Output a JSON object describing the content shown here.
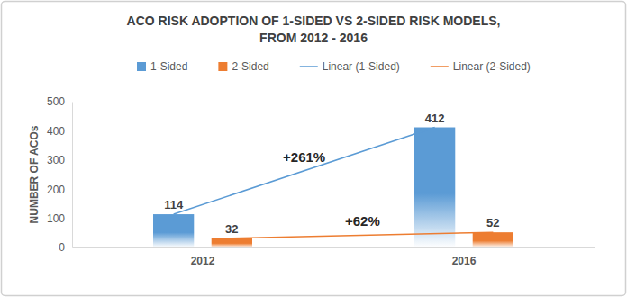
{
  "chart_data": {
    "type": "bar",
    "title": [
      "ACO RISK ADOPTION OF 1-SIDED VS 2-SIDED RISK MODELS,",
      "FROM 2012 - 2016"
    ],
    "y_label": "NUMBER OF ACOs",
    "categories": [
      "2012",
      "2016"
    ],
    "series": [
      {
        "name": "1-Sided",
        "type": "bar",
        "color": "#5b9bd5",
        "values": [
          114,
          412
        ]
      },
      {
        "name": "2-Sided",
        "type": "bar",
        "color": "#ed7d31",
        "values": [
          32,
          52
        ]
      },
      {
        "name": "Linear (1-Sided)",
        "type": "line",
        "color": "#5b9bd5",
        "line_style": "solid",
        "values": [
          114,
          412
        ]
      },
      {
        "name": "Linear (2-Sided)",
        "type": "line",
        "color": "#ed7d31",
        "line_style": "solid",
        "values": [
          32,
          52
        ]
      }
    ],
    "annotations": [
      "+261%",
      "+62%"
    ],
    "ylim": [
      0,
      500
    ],
    "yticks": [
      0,
      100,
      200,
      300,
      400,
      500
    ],
    "grid": false,
    "legend": "top",
    "data_labels": true
  }
}
